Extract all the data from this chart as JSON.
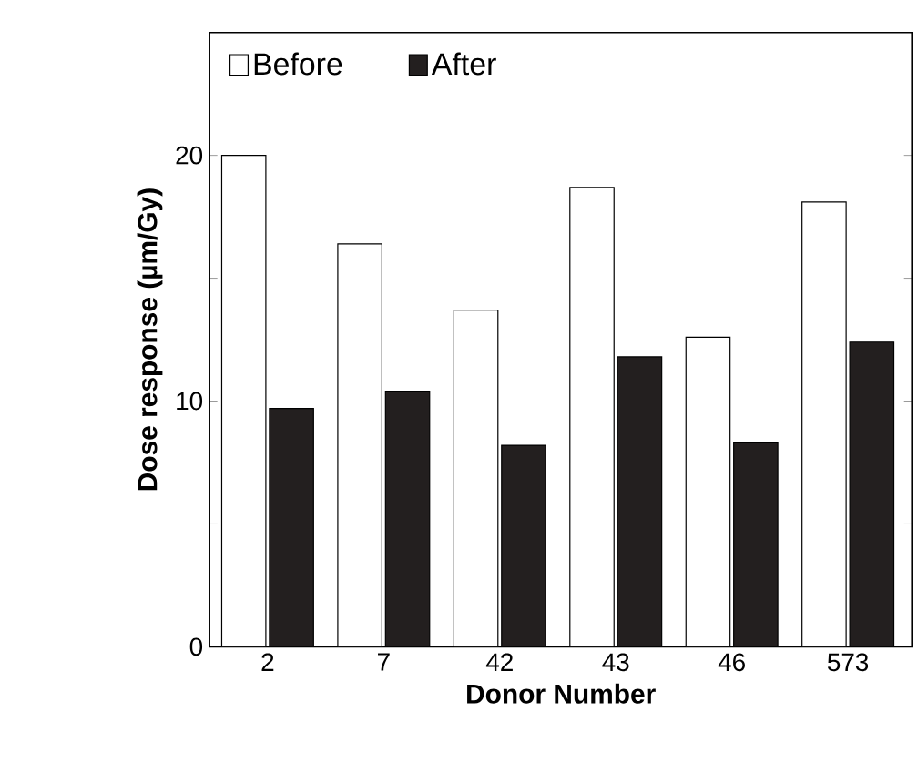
{
  "chart_data": {
    "type": "bar",
    "xlabel": "Donor Number",
    "ylabel": "Dose response (µm/Gy)",
    "categories": [
      "2",
      "7",
      "42",
      "43",
      "46",
      "573"
    ],
    "series": [
      {
        "name": "Before",
        "color": "#ffffff",
        "values": [
          20,
          16.4,
          13.7,
          18.7,
          12.6,
          18.1
        ]
      },
      {
        "name": "After",
        "color": "#231f1f",
        "values": [
          9.7,
          10.4,
          8.2,
          11.8,
          8.3,
          12.4
        ]
      }
    ],
    "ylim": [
      0,
      25
    ],
    "yticks": [
      0,
      {
        "value": 5,
        "label": null
      },
      10,
      {
        "value": 15,
        "label": null
      },
      20
    ],
    "legend": "top left",
    "grid": false
  }
}
